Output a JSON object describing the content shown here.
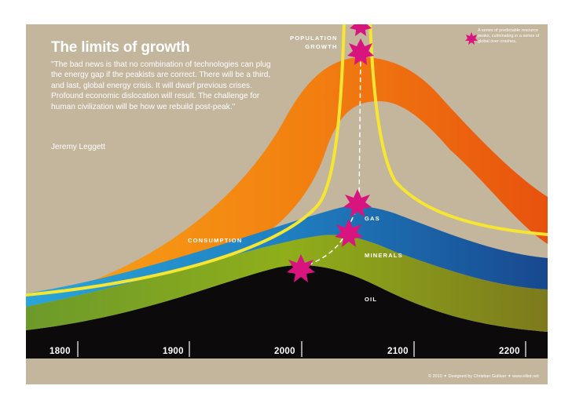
{
  "title": "The limits of growth",
  "quote": "\"The bad news is that no combination of technologies can plug the energy gap if the peakists are correct. There will be a third, and last, global energy crisis. It will dwarf previous crises. Profound economic dislocation will result. The challenge for human civilization will be how we rebuild post-peak.\"",
  "author": "Jeremy Leggett",
  "labels": {
    "population_line1": "POPULATION",
    "population_line2": "GROWTH",
    "consumption": "CONSUMPTION",
    "gas": "GAS",
    "minerals": "MINERALS",
    "oil": "OIL"
  },
  "legend_note": "A series of predictable resource peaks, culminating in a series of global over-crashes.",
  "years": [
    "1800",
    "1900",
    "2000",
    "2100",
    "2200"
  ],
  "credit": "© 2010 ✦ Designed by Christian Gulliver ✦ www.elliot.net",
  "colors": {
    "background": "#c4b59d",
    "consumption": "#f07e10",
    "gas": "#1d7cba",
    "minerals": "#86a51d",
    "oil": "#0c0a0a",
    "population": "#f6e632",
    "peak_marker": "#d8157e"
  },
  "icons": {
    "peak_marker": "starburst-icon"
  }
}
